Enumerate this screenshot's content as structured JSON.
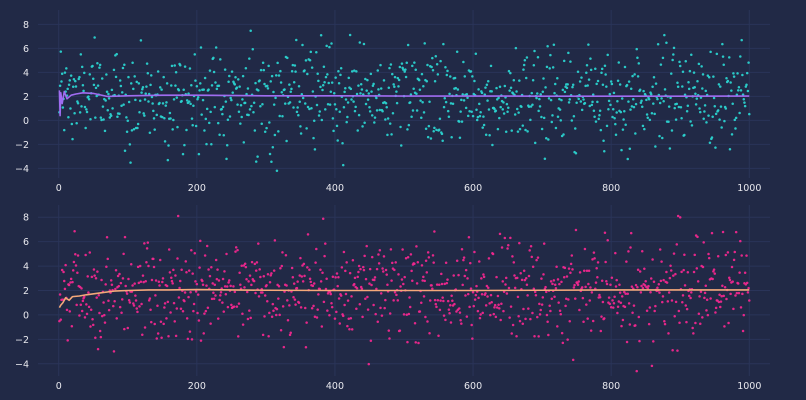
{
  "chart_data": [
    {
      "type": "scatter",
      "xlim": [
        -30,
        1030
      ],
      "ylim": [
        -4.8,
        9.2
      ],
      "xticks": [
        0,
        200,
        400,
        600,
        800,
        1000
      ],
      "yticks": [
        -4,
        -2,
        0,
        2,
        4,
        6,
        8
      ],
      "grid": true,
      "n_points": 1000,
      "scatter_color": "#2BD2CF",
      "line_color": "#A06CF0",
      "point_distribution": {
        "mean": 2,
        "std": 2,
        "min": -4.2,
        "max": 8.6
      },
      "running_mean": {
        "x": [
          1,
          2,
          3,
          5,
          8,
          12,
          18,
          25,
          35,
          50,
          70,
          100,
          150,
          200,
          300,
          400,
          500,
          600,
          700,
          800,
          900,
          1000
        ],
        "y": [
          2.5,
          0.4,
          2.3,
          1.4,
          2.4,
          1.8,
          2.1,
          2.2,
          2.3,
          2.25,
          2.0,
          2.05,
          2.1,
          2.1,
          2.05,
          2.05,
          2.03,
          2.03,
          2.02,
          2.02,
          2.02,
          2.03
        ]
      }
    },
    {
      "type": "scatter",
      "xlim": [
        -30,
        1030
      ],
      "ylim": [
        -5.0,
        9.0
      ],
      "xticks": [
        0,
        200,
        400,
        600,
        800,
        1000
      ],
      "yticks": [
        -4,
        -2,
        0,
        2,
        4,
        6,
        8
      ],
      "grid": true,
      "n_points": 1000,
      "scatter_color": "#F0278E",
      "line_color": "#F5A87A",
      "point_distribution": {
        "mean": 2,
        "std": 2,
        "min": -4.6,
        "max": 8.1
      },
      "running_mean": {
        "x": [
          1,
          3,
          6,
          10,
          15,
          20,
          30,
          40,
          60,
          80,
          100,
          130,
          160,
          200,
          300,
          400,
          500,
          600,
          700,
          800,
          900,
          1000
        ],
        "y": [
          0.6,
          0.8,
          1.0,
          1.4,
          1.2,
          1.5,
          1.55,
          1.65,
          1.8,
          1.95,
          2.0,
          2.05,
          2.05,
          2.08,
          2.02,
          2.0,
          2.0,
          2.0,
          2.02,
          2.05,
          2.05,
          2.05
        ]
      }
    }
  ]
}
